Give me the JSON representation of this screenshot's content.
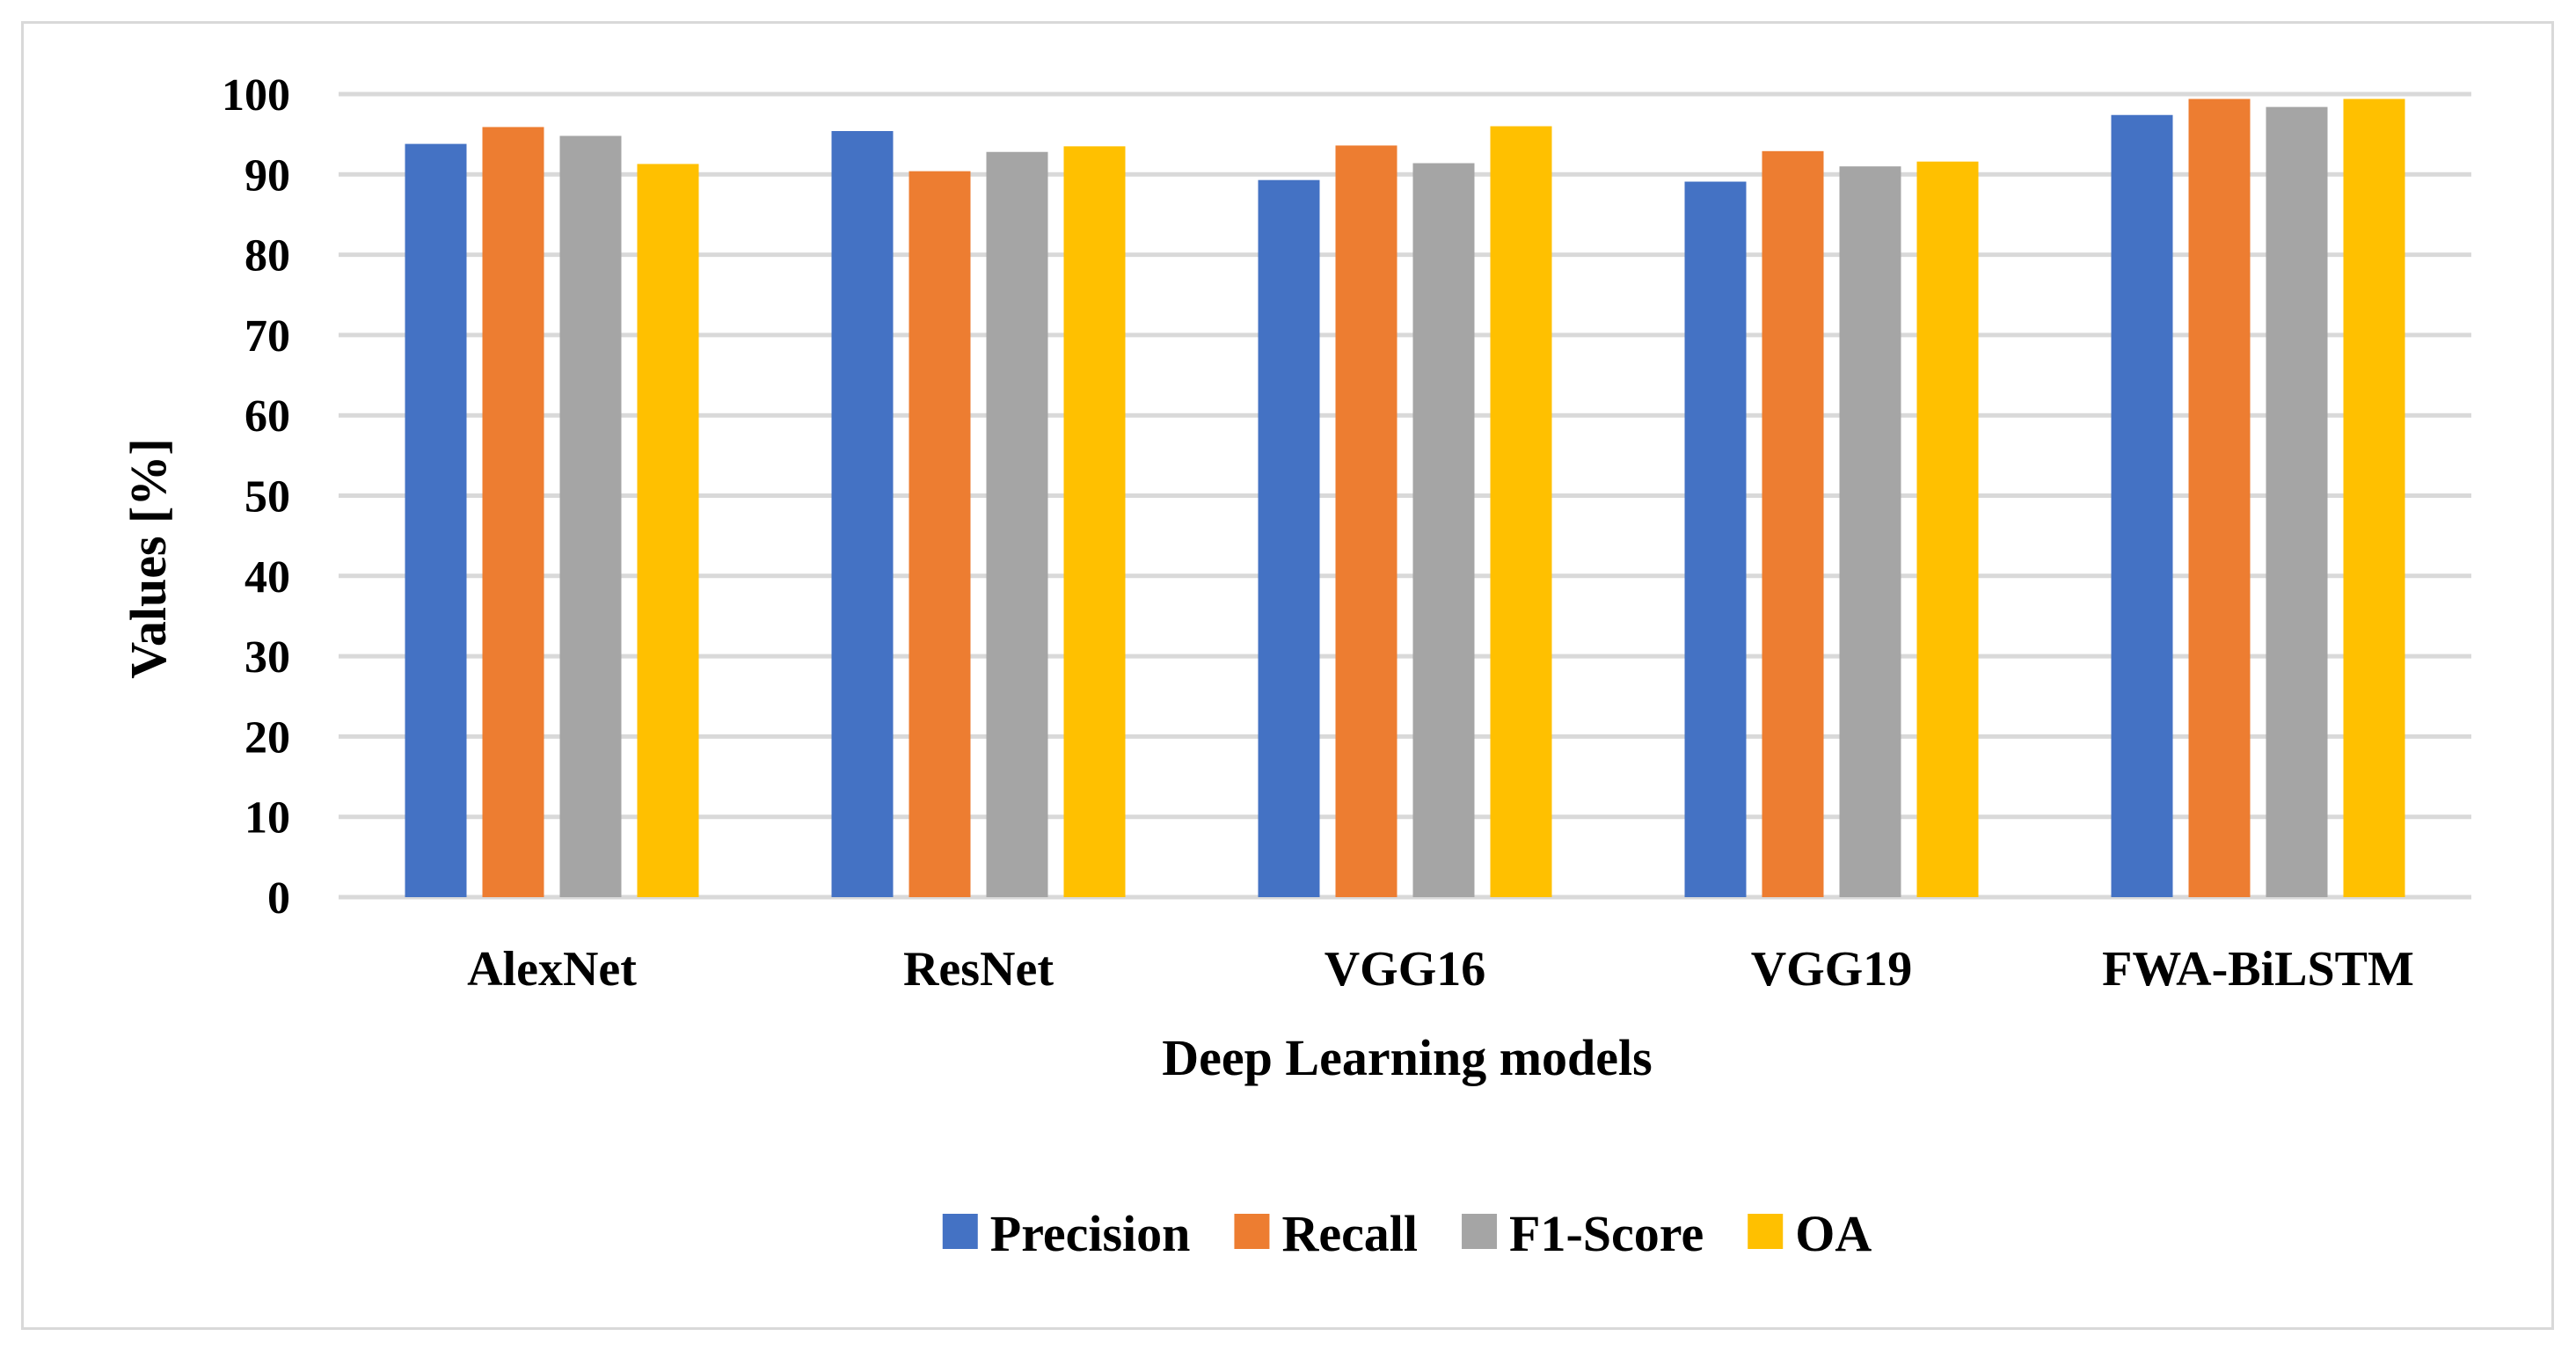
{
  "chart_data": {
    "type": "bar",
    "title": "",
    "xlabel": "Deep Learning models",
    "ylabel": "Values [%]",
    "ylim": [
      0,
      100
    ],
    "yticks": [
      0,
      10,
      20,
      30,
      40,
      50,
      60,
      70,
      80,
      90,
      100
    ],
    "grid": true,
    "legend_position": "bottom",
    "categories": [
      "AlexNet",
      "ResNet",
      "VGG16",
      "VGG19",
      "FWA-BiLSTM"
    ],
    "series": [
      {
        "name": "Precision",
        "color": "#4472c4",
        "values": [
          93.8,
          95.4,
          89.3,
          89.1,
          97.4
        ]
      },
      {
        "name": "Recall",
        "color": "#ed7d31",
        "values": [
          95.9,
          90.4,
          93.6,
          92.9,
          99.4
        ]
      },
      {
        "name": "F1-Score",
        "color": "#a5a5a5",
        "values": [
          94.8,
          92.8,
          91.4,
          91.0,
          98.4
        ]
      },
      {
        "name": "OA",
        "color": "#ffc000",
        "values": [
          91.3,
          93.5,
          96.0,
          91.6,
          99.4
        ]
      }
    ]
  }
}
